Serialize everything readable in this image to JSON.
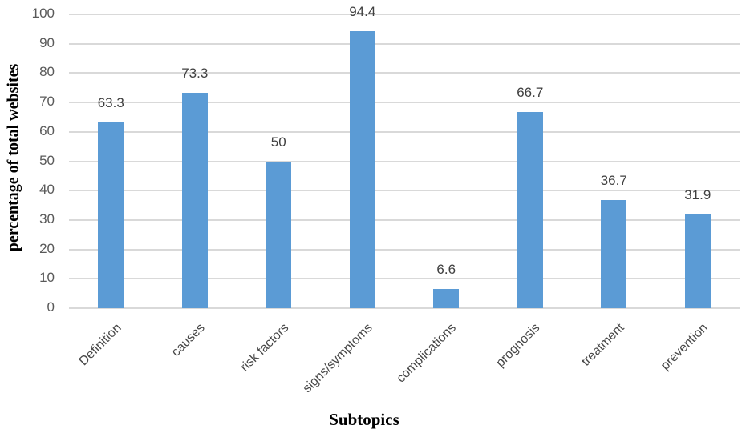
{
  "chart_data": {
    "type": "bar",
    "categories": [
      "Definition",
      "causes",
      "risk factors",
      "signs/symptoms",
      "complications",
      "prognosis",
      "treatment",
      "prevention"
    ],
    "values": [
      63.3,
      73.3,
      50,
      94.4,
      6.6,
      66.7,
      36.7,
      31.9
    ],
    "value_labels": [
      "63.3",
      "73.3",
      "50",
      "94.4",
      "6.6",
      "66.7",
      "36.7",
      "31.9"
    ],
    "title": "",
    "xlabel": "Subtopics",
    "ylabel": "percentage of total websites",
    "ylim": [
      0,
      100
    ],
    "ytick_step": 10,
    "yticks": [
      "0",
      "10",
      "20",
      "30",
      "40",
      "50",
      "60",
      "70",
      "80",
      "90",
      "100"
    ],
    "grid": "horizontal",
    "legend_position": "none",
    "colors": {
      "bar": "#5b9bd5",
      "gridline": "#d9d9d9",
      "axis_line": "#d9d9d9",
      "tick_text": "#595959",
      "value_text": "#404040",
      "category_text": "#474747",
      "title_text": "#000000"
    }
  }
}
